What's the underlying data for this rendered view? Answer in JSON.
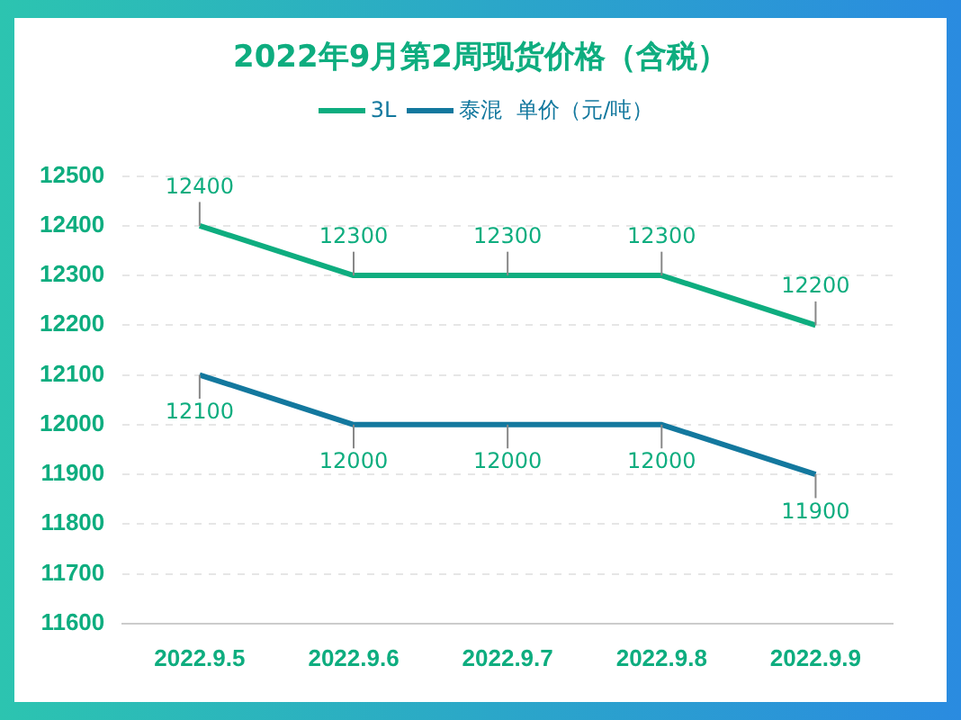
{
  "chart_data": {
    "type": "line",
    "title": "2022年9月第2周现货价格（含税）",
    "ylabel": "单价（元/吨）",
    "categories": [
      "2022.9.5",
      "2022.9.6",
      "2022.9.7",
      "2022.9.8",
      "2022.9.9"
    ],
    "series": [
      {
        "name": "3L",
        "color": "#0ead7f",
        "values": [
          12400,
          12300,
          12300,
          12300,
          12200
        ]
      },
      {
        "name": "泰混",
        "color": "#13789e",
        "values": [
          12100,
          12000,
          12000,
          12000,
          11900
        ]
      }
    ],
    "ylim": [
      11600,
      12500
    ],
    "yticks": [
      11600,
      11700,
      11800,
      11900,
      12000,
      12100,
      12200,
      12300,
      12400,
      12500
    ],
    "grid": "y",
    "legend": "top",
    "marker": "none",
    "line_style": "solid",
    "data_labels": true
  }
}
